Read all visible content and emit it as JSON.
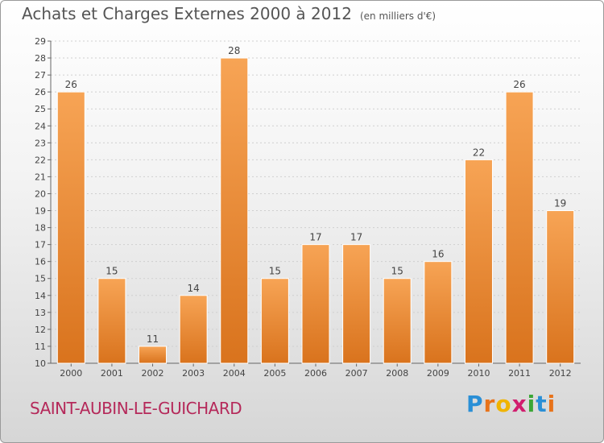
{
  "title": "Achats et Charges Externes 2000 à 2012",
  "subtitle": "(en milliers d'€)",
  "city": "SAINT-AUBIN-LE-GUICHARD",
  "logo": {
    "letters": [
      "P",
      "r",
      "o",
      "x",
      "i",
      "t",
      "i"
    ],
    "colors": [
      "#2a8fd6",
      "#e8731a",
      "#f0b400",
      "#d11d6e",
      "#3aa635",
      "#2a8fd6",
      "#e8731a"
    ]
  },
  "colors": {
    "bar_light": "#f7a455",
    "bar_dark": "#d9731d",
    "bar_stroke": "#ffffff",
    "grid": "#cfcfcf",
    "text": "#444444"
  },
  "chart_data": {
    "type": "bar",
    "title": "Achats et Charges Externes 2000 à 2012",
    "subtitle": "(en milliers d'€)",
    "categories": [
      "2000",
      "2001",
      "2002",
      "2003",
      "2004",
      "2005",
      "2006",
      "2007",
      "2008",
      "2009",
      "2010",
      "2011",
      "2012"
    ],
    "values": [
      26,
      15,
      11,
      14,
      28,
      15,
      17,
      17,
      15,
      16,
      22,
      26,
      19
    ],
    "ylim": [
      10,
      29
    ],
    "yticks": [
      10,
      11,
      12,
      13,
      14,
      15,
      16,
      17,
      18,
      19,
      20,
      21,
      22,
      23,
      24,
      25,
      26,
      27,
      28,
      29
    ],
    "grid": true,
    "xlabel": "",
    "ylabel": ""
  }
}
